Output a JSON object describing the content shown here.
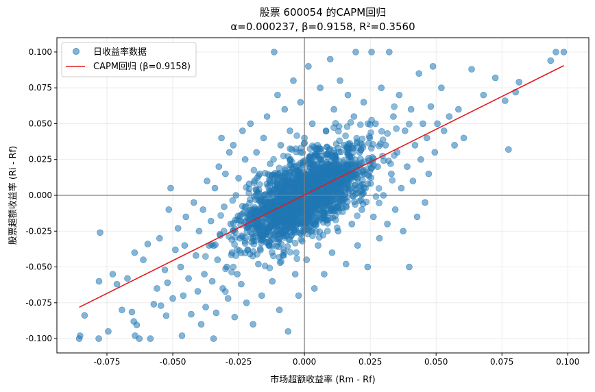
{
  "chart_data": {
    "type": "scatter",
    "title": "股票 600054 的CAPM回归",
    "subtitle": "α=0.000237, β=0.9158, R²=0.3560",
    "xlabel": "市场超额收益率 (Rm - Rf)",
    "ylabel": "股票超额收益率 (Ri - Rf)",
    "xlim": [
      -0.094,
      0.108
    ],
    "ylim": [
      -0.11,
      0.11
    ],
    "xticks": [
      -0.075,
      -0.05,
      -0.025,
      0.0,
      0.025,
      0.05,
      0.075,
      0.1
    ],
    "yticks": [
      -0.1,
      -0.075,
      -0.05,
      -0.025,
      0.0,
      0.025,
      0.05,
      0.075,
      0.1
    ],
    "xtick_labels": [
      "-0.075",
      "-0.050",
      "-0.025",
      "0.000",
      "0.025",
      "0.050",
      "0.075",
      "0.100"
    ],
    "ytick_labels": [
      "-0.100",
      "-0.075",
      "-0.050",
      "-0.025",
      "0.000",
      "0.025",
      "0.050",
      "0.075",
      "0.100"
    ],
    "grid": true,
    "legend_position": "top-left",
    "series": [
      {
        "name": "日收益率数据",
        "kind": "scatter",
        "color": "#1f77b4",
        "points": [
          [
            -0.0855,
            -0.1
          ],
          [
            -0.0852,
            -0.098
          ],
          [
            -0.0835,
            -0.0838
          ],
          [
            -0.0781,
            -0.1
          ],
          [
            -0.078,
            -0.06
          ],
          [
            -0.0776,
            -0.026
          ],
          [
            -0.0745,
            -0.095
          ],
          [
            -0.0728,
            -0.055
          ],
          [
            -0.0712,
            -0.062
          ],
          [
            -0.0693,
            -0.08
          ],
          [
            -0.0672,
            -0.058
          ],
          [
            -0.0655,
            -0.0815
          ],
          [
            -0.0648,
            -0.088
          ],
          [
            -0.0643,
            -0.098
          ],
          [
            -0.0637,
            -0.0905
          ],
          [
            -0.0645,
            -0.04
          ],
          [
            -0.0627,
            -0.1
          ],
          [
            -0.0612,
            -0.045
          ],
          [
            -0.0595,
            -0.034
          ],
          [
            -0.0585,
            -0.1
          ],
          [
            -0.0572,
            -0.076
          ],
          [
            -0.056,
            -0.065
          ],
          [
            -0.055,
            -0.03
          ],
          [
            -0.0545,
            -0.077
          ],
          [
            -0.053,
            -0.052
          ],
          [
            -0.0525,
            -0.084
          ],
          [
            -0.052,
            -0.061
          ],
          [
            -0.0515,
            -0.01
          ],
          [
            -0.0508,
            0.005
          ],
          [
            -0.05,
            -0.072
          ],
          [
            -0.049,
            -0.038
          ],
          [
            -0.048,
            -0.023
          ],
          [
            -0.047,
            -0.05
          ],
          [
            -0.0465,
            -0.098
          ],
          [
            -0.046,
            -0.07
          ],
          [
            -0.0455,
            -0.035
          ],
          [
            -0.045,
            -0.015
          ],
          [
            -0.044,
            -0.058
          ],
          [
            -0.043,
            -0.083
          ],
          [
            -0.042,
            -0.005
          ],
          [
            -0.0412,
            -0.042
          ],
          [
            -0.0405,
            -0.067
          ],
          [
            -0.04,
            -0.025
          ],
          [
            -0.0392,
            -0.09
          ],
          [
            -0.0385,
            -0.01
          ],
          [
            -0.038,
            -0.055
          ],
          [
            -0.0375,
            -0.078
          ],
          [
            -0.037,
            0.01
          ],
          [
            -0.0362,
            -0.035
          ],
          [
            -0.0355,
            -0.018
          ],
          [
            -0.035,
            -0.06
          ],
          [
            -0.0345,
            -0.1
          ],
          [
            -0.034,
            0.005
          ],
          [
            -0.0335,
            -0.082
          ],
          [
            -0.033,
            -0.045
          ],
          [
            -0.0325,
            0.02
          ],
          [
            -0.032,
            -0.028
          ],
          [
            -0.0315,
            0.04
          ],
          [
            -0.031,
            -0.065
          ],
          [
            -0.0305,
            -0.008
          ],
          [
            -0.03,
            0.015
          ],
          [
            -0.0295,
            -0.05
          ],
          [
            -0.029,
            -0.072
          ],
          [
            -0.0285,
            0.03
          ],
          [
            -0.028,
            -0.02
          ],
          [
            -0.0275,
            -0.04
          ],
          [
            -0.027,
            0.035
          ],
          [
            -0.0265,
            -0.085
          ],
          [
            -0.026,
            0.0
          ],
          [
            -0.0255,
            -0.055
          ],
          [
            -0.025,
            0.012
          ],
          [
            -0.0245,
            -0.03
          ],
          [
            -0.024,
            -0.062
          ],
          [
            -0.0235,
            0.045
          ],
          [
            -0.023,
            -0.012
          ],
          [
            -0.0225,
            0.025
          ],
          [
            -0.022,
            -0.075
          ],
          [
            -0.0215,
            -0.038
          ],
          [
            -0.021,
            0.008
          ],
          [
            -0.0205,
            0.05
          ],
          [
            -0.0195,
            -0.09
          ],
          [
            -0.019,
            -0.022
          ],
          [
            -0.0182,
            0.03
          ],
          [
            -0.0175,
            -0.048
          ],
          [
            -0.017,
            0.015
          ],
          [
            -0.0162,
            -0.07
          ],
          [
            -0.0155,
            0.04
          ],
          [
            -0.015,
            -0.005
          ],
          [
            -0.0142,
            0.055
          ],
          [
            -0.0135,
            -0.035
          ],
          [
            -0.013,
            0.022
          ],
          [
            -0.0122,
            -0.06
          ],
          [
            -0.0115,
            0.1
          ],
          [
            -0.0108,
            -0.015
          ],
          [
            -0.0102,
            0.07
          ],
          [
            -0.0095,
            -0.08
          ],
          [
            -0.009,
            0.035
          ],
          [
            -0.0082,
            -0.042
          ],
          [
            -0.0075,
            0.06
          ],
          [
            -0.007,
            0.0
          ],
          [
            -0.0062,
            -0.095
          ],
          [
            -0.0055,
            0.045
          ],
          [
            -0.005,
            -0.028
          ],
          [
            -0.0042,
            0.08
          ],
          [
            -0.0035,
            -0.055
          ],
          [
            -0.003,
            0.02
          ],
          [
            -0.0022,
            -0.07
          ],
          [
            -0.0015,
            0.065
          ],
          [
            -0.0008,
            -0.01
          ],
          [
            0.0,
            0.04
          ],
          [
            0.0008,
            -0.045
          ],
          [
            0.0015,
            0.09
          ],
          [
            0.0022,
            -0.02
          ],
          [
            0.003,
            0.05
          ],
          [
            0.0038,
            -0.065
          ],
          [
            0.0045,
            0.028
          ],
          [
            0.0052,
            -0.035
          ],
          [
            0.006,
            0.075
          ],
          [
            0.0068,
            0.0
          ],
          [
            0.0075,
            -0.055
          ],
          [
            0.0082,
            0.045
          ],
          [
            0.009,
            -0.012
          ],
          [
            0.0098,
            0.095
          ],
          [
            0.0105,
            -0.04
          ],
          [
            0.0112,
            0.06
          ],
          [
            0.012,
            0.018
          ],
          [
            0.0128,
            -0.025
          ],
          [
            0.0135,
            0.08
          ],
          [
            0.0142,
            -0.005
          ],
          [
            0.015,
            0.035
          ],
          [
            0.0158,
            -0.048
          ],
          [
            0.0165,
            0.07
          ],
          [
            0.0172,
            0.012
          ],
          [
            0.018,
            -0.02
          ],
          [
            0.0188,
            0.055
          ],
          [
            0.0195,
            0.1
          ],
          [
            0.0202,
            -0.035
          ],
          [
            0.021,
            0.03
          ],
          [
            0.0218,
            -0.01
          ],
          [
            0.0225,
            0.065
          ],
          [
            0.0232,
            0.005
          ],
          [
            0.024,
            -0.05
          ],
          [
            0.0248,
            0.04
          ],
          [
            0.0255,
            0.1
          ],
          [
            0.0262,
            -0.015
          ],
          [
            0.027,
            0.05
          ],
          [
            0.0278,
            0.02
          ],
          [
            0.0285,
            -0.03
          ],
          [
            0.0292,
            0.075
          ],
          [
            0.03,
            0.0
          ],
          [
            0.0308,
            0.035
          ],
          [
            0.0315,
            -0.02
          ],
          [
            0.0322,
            0.1
          ],
          [
            0.033,
            0.015
          ],
          [
            0.0338,
            0.055
          ],
          [
            0.0345,
            -0.01
          ],
          [
            0.0352,
            0.03
          ],
          [
            0.036,
            0.07
          ],
          [
            0.0368,
            0.005
          ],
          [
            0.0375,
            -0.025
          ],
          [
            0.0382,
            0.045
          ],
          [
            0.039,
            0.02
          ],
          [
            0.0398,
            -0.05
          ],
          [
            0.0405,
            0.06
          ],
          [
            0.0412,
            0.01
          ],
          [
            0.042,
            0.035
          ],
          [
            0.0428,
            -0.015
          ],
          [
            0.0435,
            0.085
          ],
          [
            0.0442,
            0.025
          ],
          [
            0.045,
            0.05
          ],
          [
            0.0458,
            -0.005
          ],
          [
            0.0465,
            0.04
          ],
          [
            0.0472,
            0.015
          ],
          [
            0.048,
            0.062
          ],
          [
            0.0488,
            0.09
          ],
          [
            0.0495,
            0.03
          ],
          [
            0.0505,
            0.05
          ],
          [
            0.052,
            0.075
          ],
          [
            0.053,
            0.045
          ],
          [
            0.055,
            0.055
          ],
          [
            0.057,
            0.035
          ],
          [
            0.0585,
            0.06
          ],
          [
            0.0605,
            0.04
          ],
          [
            0.0635,
            0.088
          ],
          [
            0.068,
            0.07
          ],
          [
            0.0725,
            0.082
          ],
          [
            0.0762,
            0.066
          ],
          [
            0.0775,
            0.032
          ],
          [
            0.0802,
            0.072
          ],
          [
            0.0815,
            0.079
          ],
          [
            0.0935,
            0.094
          ],
          [
            0.0955,
            0.1
          ],
          [
            0.0985,
            0.1
          ]
        ]
      },
      {
        "name": "CAPM回归 (β=0.9158)",
        "kind": "line",
        "color": "#e31a1c",
        "points": [
          [
            -0.0855,
            -0.0781
          ],
          [
            0.0985,
            0.0905
          ]
        ]
      }
    ]
  }
}
